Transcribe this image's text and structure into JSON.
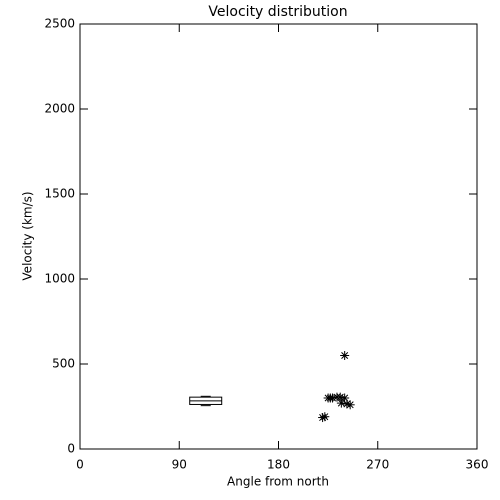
{
  "chart_data": {
    "type": "scatter",
    "title": "Velocity distribution",
    "x_label": "Angle from north",
    "y_label": "Velocity (km/s)",
    "x": [
      240,
      220,
      222,
      225,
      227,
      229,
      233,
      236,
      240,
      237,
      242,
      245
    ],
    "y": [
      550,
      185,
      190,
      300,
      300,
      300,
      305,
      305,
      300,
      270,
      265,
      260
    ],
    "marker": "asterisk",
    "color": "#000000",
    "box": {
      "x": 114,
      "min": 255,
      "q1": 262,
      "median": 283,
      "q3": 305,
      "max": 310
    },
    "xlim": [
      0,
      360
    ],
    "ylim": [
      0,
      2500
    ],
    "xticks": [
      0,
      90,
      180,
      270,
      360
    ],
    "yticks": [
      0,
      500,
      1000,
      1500,
      2000,
      2500
    ]
  }
}
